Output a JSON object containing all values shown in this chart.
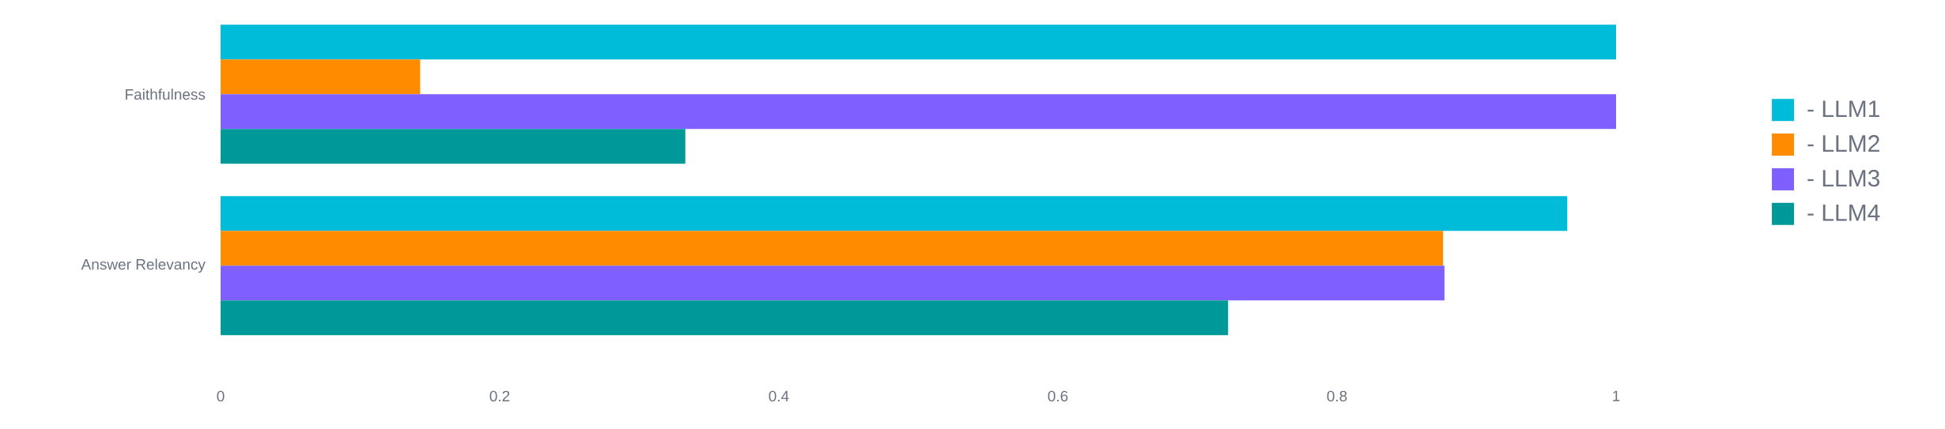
{
  "chart_data": {
    "type": "bar",
    "orientation": "horizontal",
    "categories": [
      "Faithfulness",
      "Answer Relevancy"
    ],
    "series": [
      {
        "name": "- LLM1",
        "color": "#00bcd9",
        "values": [
          1,
          0.965
        ]
      },
      {
        "name": "- LLM2",
        "color": "#ff8c00",
        "values": [
          0.143,
          0.876
        ]
      },
      {
        "name": "- LLM3",
        "color": "#7f5fff",
        "values": [
          1,
          0.877
        ]
      },
      {
        "name": "- LLM4",
        "color": "#009999",
        "values": [
          0.333,
          0.722
        ]
      }
    ],
    "xlim": [
      0,
      1
    ],
    "xticks": [
      0,
      0.2,
      0.4,
      0.6,
      0.8,
      1
    ],
    "grid": false,
    "legend": "right"
  }
}
